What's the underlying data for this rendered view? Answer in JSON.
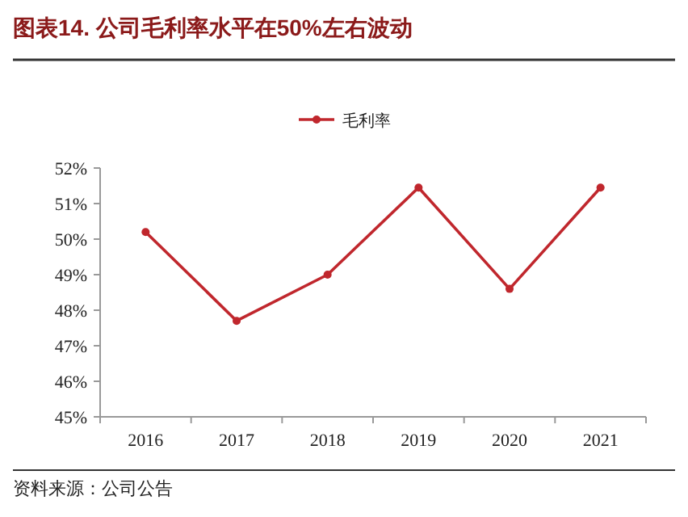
{
  "chart_data": {
    "type": "line",
    "title": "图表14. 公司毛利率水平在50%左右波动",
    "categories": [
      "2016",
      "2017",
      "2018",
      "2019",
      "2020",
      "2021"
    ],
    "series": [
      {
        "name": "毛利率",
        "color": "#c0272d",
        "values": [
          50.2,
          47.7,
          49.0,
          51.45,
          48.6,
          51.45
        ]
      }
    ],
    "ylim": [
      45,
      52
    ],
    "yticks": [
      {
        "value": 45,
        "label": "45%"
      },
      {
        "value": 46,
        "label": "46%"
      },
      {
        "value": 47,
        "label": "47%"
      },
      {
        "value": 48,
        "label": "48%"
      },
      {
        "value": 49,
        "label": "49%"
      },
      {
        "value": 50,
        "label": "50%"
      },
      {
        "value": 51,
        "label": "51%"
      },
      {
        "value": 52,
        "label": "52%"
      }
    ],
    "grid": false,
    "legend": "top",
    "marker": "circle",
    "line_style": "solid",
    "annotations": [
      "资料来源：公司公告"
    ]
  }
}
